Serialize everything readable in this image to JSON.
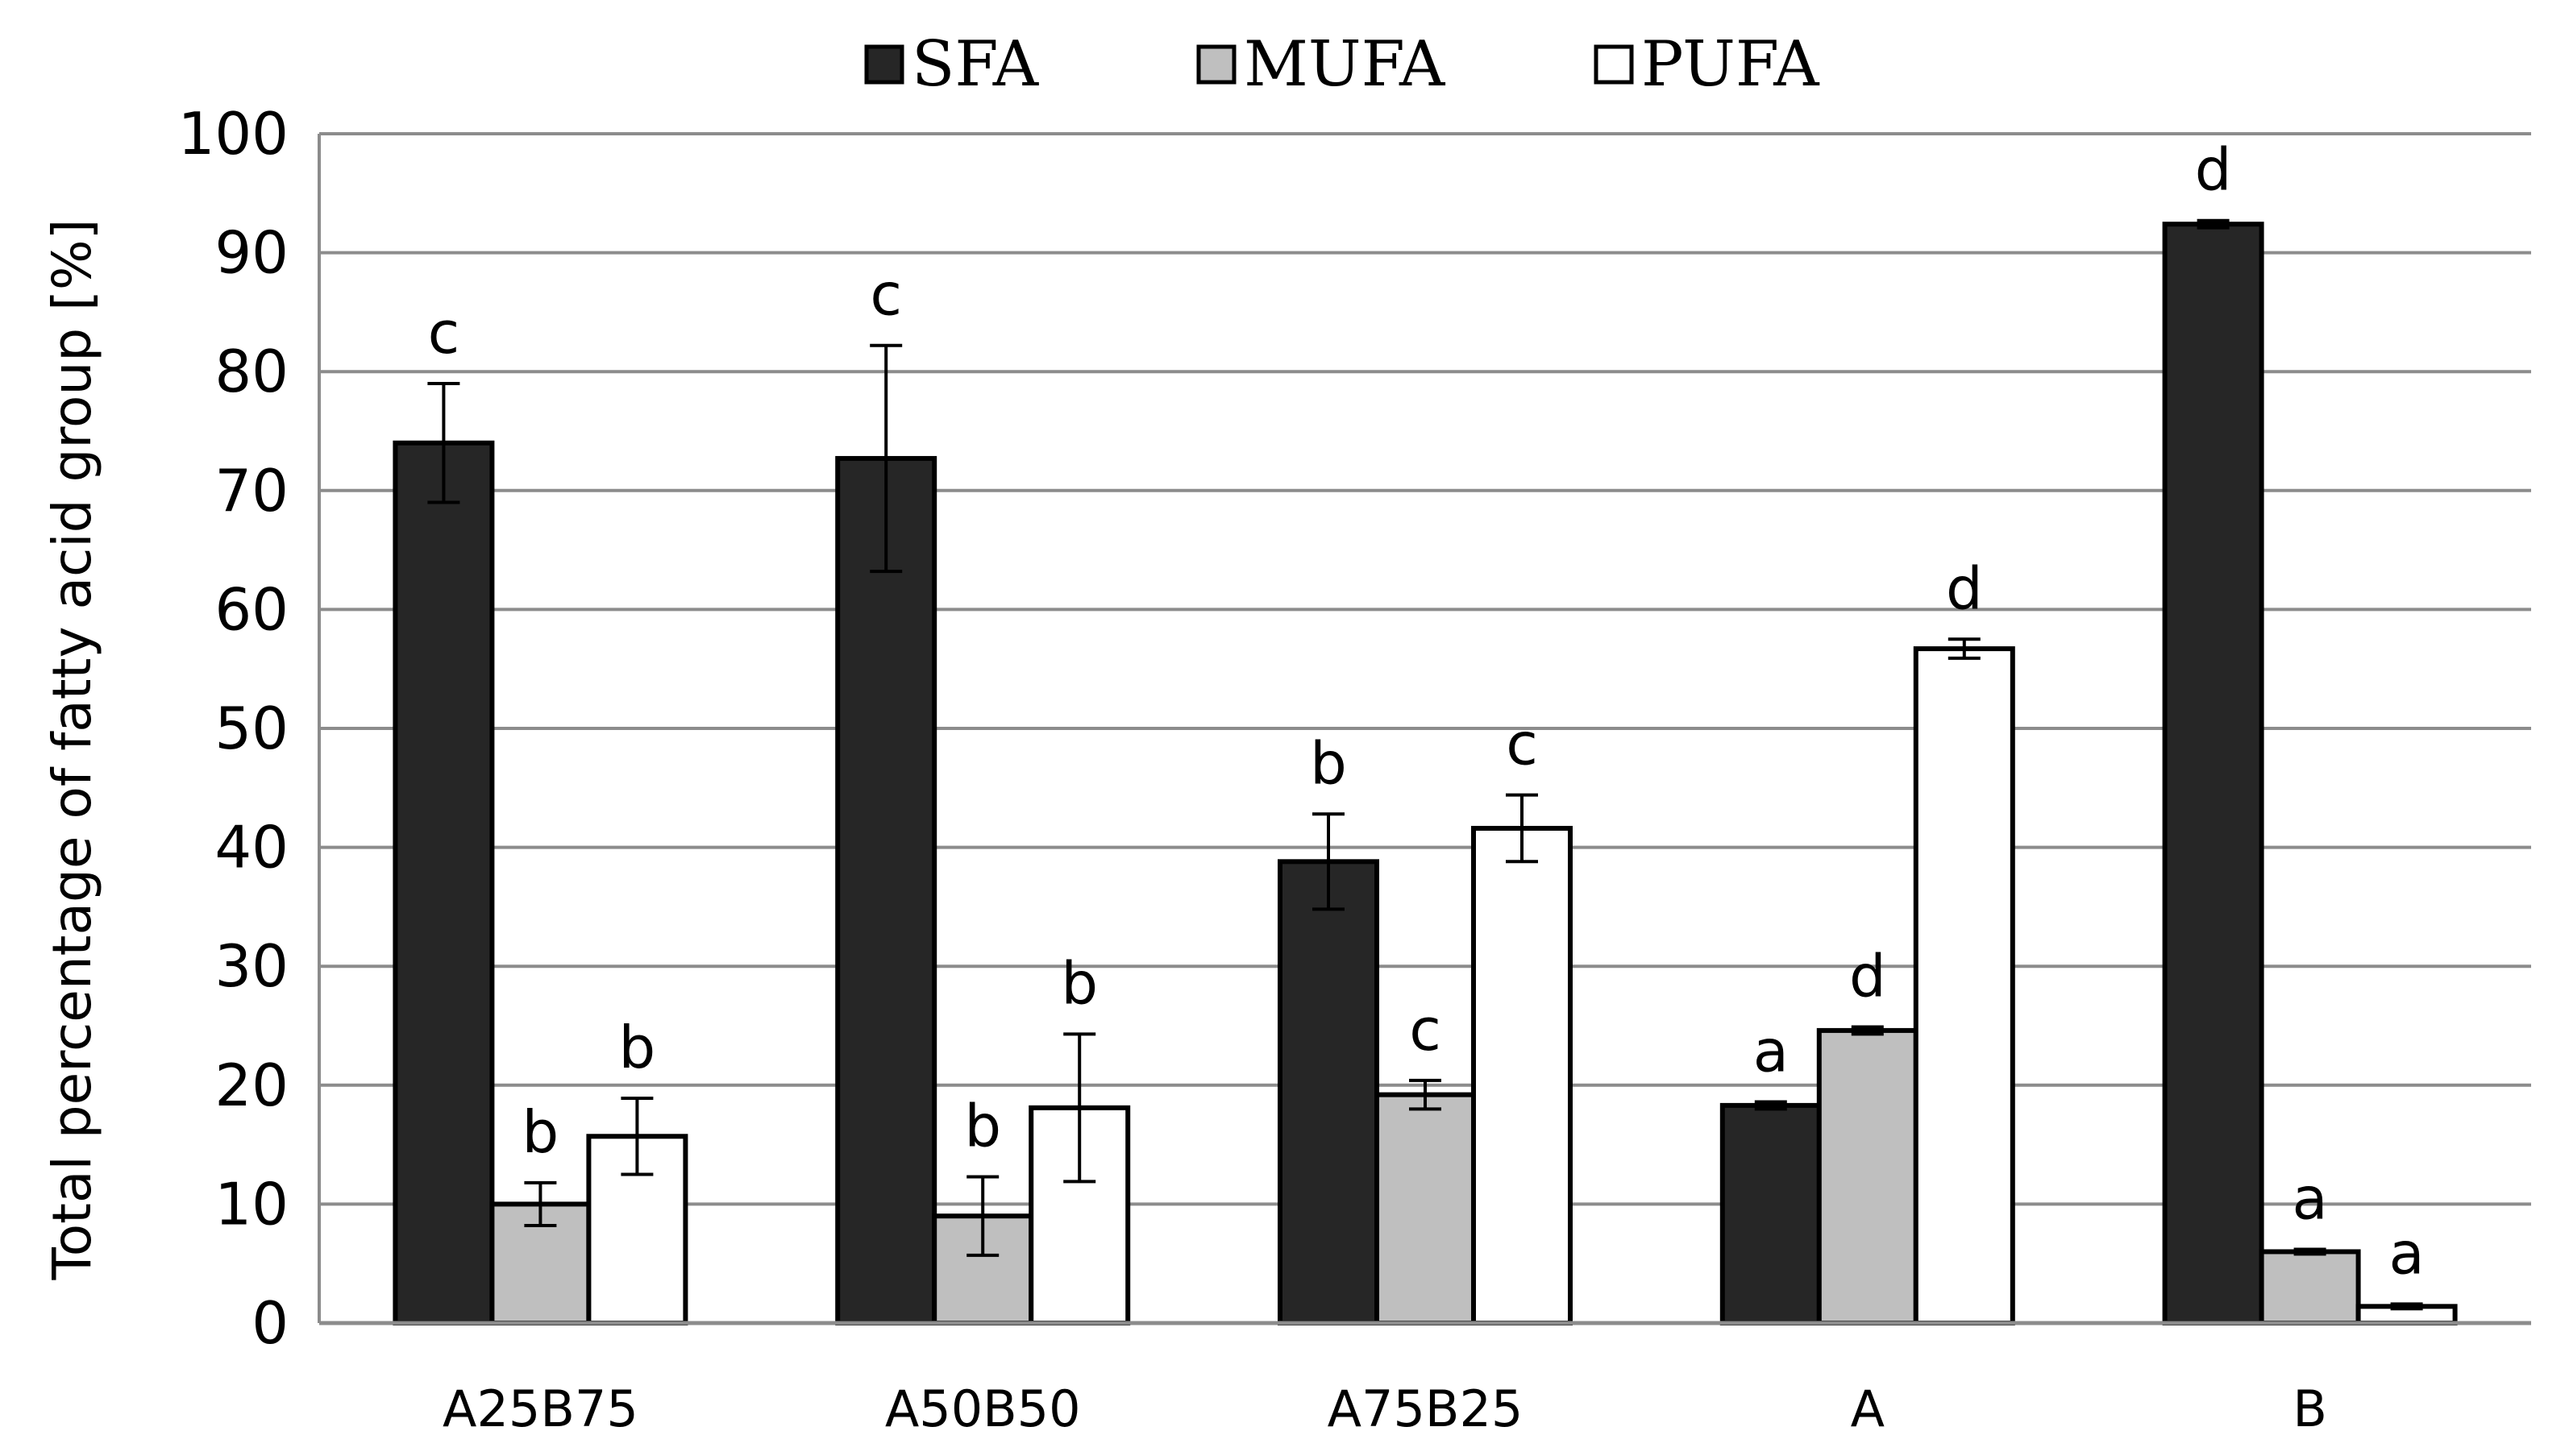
{
  "chart_data": {
    "type": "bar",
    "title": "",
    "xlabel": "",
    "ylabel": "Total percentage of fatty acid group [%]",
    "ylim": [
      0,
      100
    ],
    "yticks": [
      0,
      10,
      20,
      30,
      40,
      50,
      60,
      70,
      80,
      90,
      100
    ],
    "grid": true,
    "legend_position": "top-center",
    "categories": [
      "A25B75",
      "A50B50",
      "A75B25",
      "A",
      "B"
    ],
    "series": [
      {
        "name": "SFA",
        "color": "#262626",
        "values": [
          74,
          72.7,
          38.8,
          18.3,
          92.4
        ],
        "errors": [
          5,
          9.5,
          4,
          0.3,
          0.3
        ],
        "labels": [
          "c",
          "c",
          "b",
          "a",
          "d"
        ]
      },
      {
        "name": "MUFA",
        "color": "#bfbfbf",
        "values": [
          10,
          9,
          19.2,
          24.6,
          6
        ],
        "errors": [
          1.8,
          3.3,
          1.2,
          0.3,
          0.2
        ],
        "labels": [
          "b",
          "b",
          "c",
          "d",
          "a"
        ]
      },
      {
        "name": "PUFA",
        "color": "#ffffff",
        "values": [
          15.7,
          18.1,
          41.6,
          56.7,
          1.4
        ],
        "errors": [
          3.2,
          6.2,
          2.8,
          0.8,
          0.2
        ],
        "labels": [
          "b",
          "b",
          "c",
          "d",
          "a"
        ]
      }
    ]
  }
}
